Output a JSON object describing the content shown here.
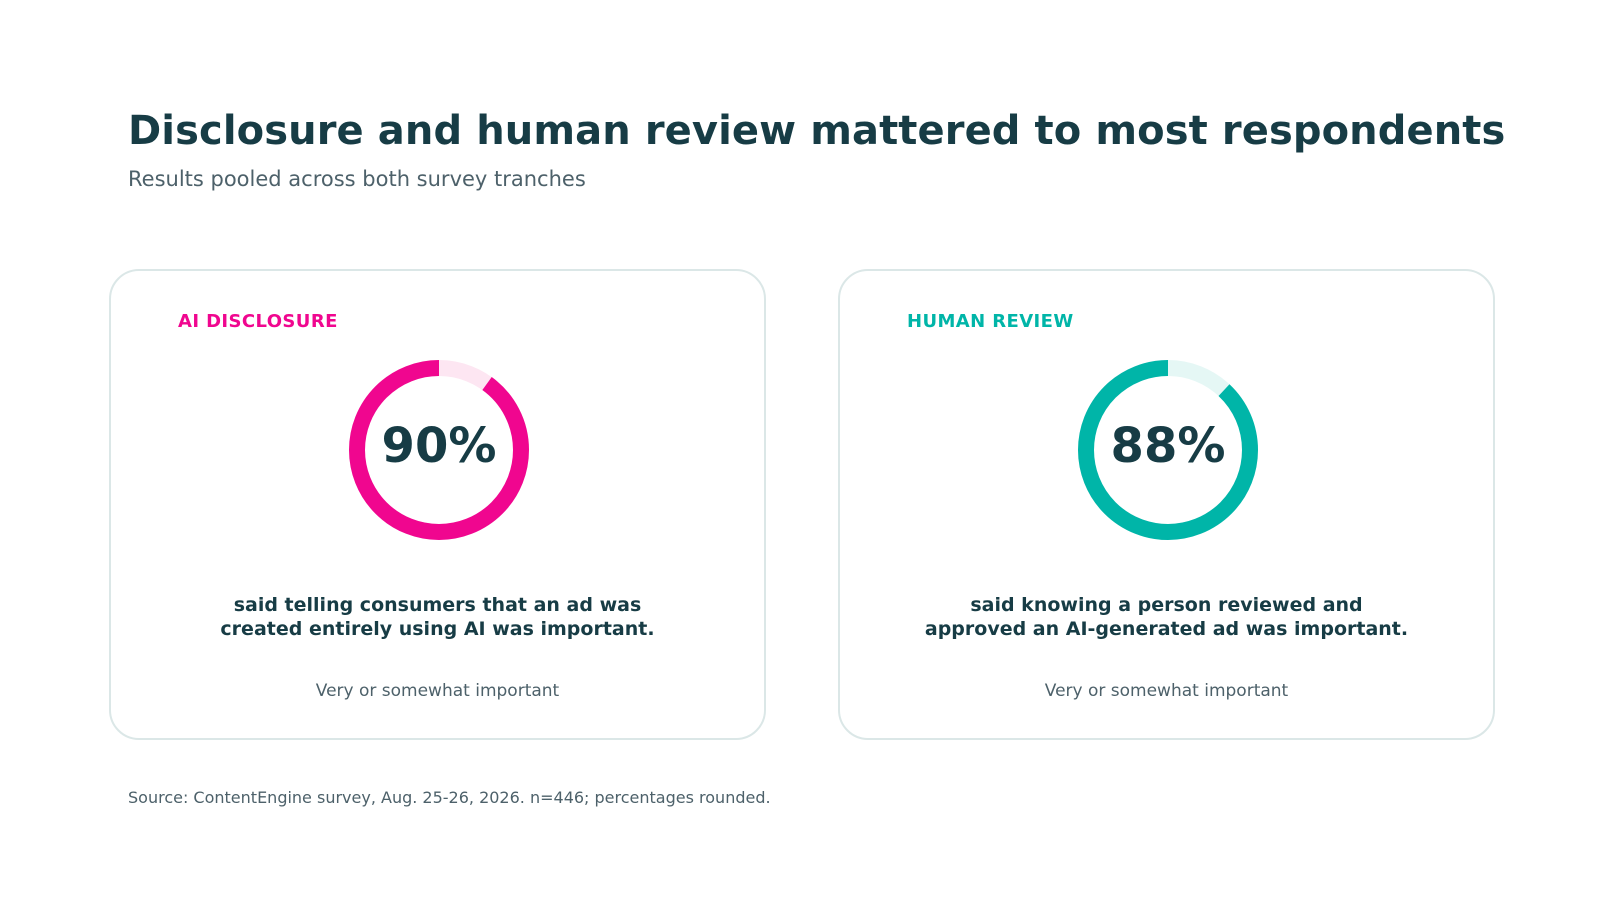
{
  "title": "Disclosure and human review mattered to most respondents",
  "subtitle": "Results pooled across both survey tranches",
  "colors": {
    "ai_accent": "#f0068f",
    "ai_track": "#fde6f2",
    "human_accent": "#00b5a8",
    "human_track": "#e5f7f5",
    "text_dark": "#173c45",
    "text_muted": "#4d616a"
  },
  "cards": [
    {
      "label": "AI DISCLOSURE",
      "value_text": "90%",
      "statement_lines": [
        "said telling consumers that an ad was",
        "created entirely using AI was important."
      ],
      "note": "Very or somewhat important"
    },
    {
      "label": "HUMAN REVIEW",
      "value_text": "88%",
      "statement_lines": [
        "said knowing a person reviewed and",
        "approved an AI-generated ad was important."
      ],
      "note": "Very or somewhat important"
    }
  ],
  "chart_data": [
    {
      "type": "pie",
      "title": "AI DISCLOSURE",
      "categories": [
        "Very or somewhat important"
      ],
      "values": [
        90
      ],
      "unit": "%",
      "ylim": [
        0,
        100
      ]
    },
    {
      "type": "pie",
      "title": "HUMAN REVIEW",
      "categories": [
        "Very or somewhat important"
      ],
      "values": [
        88
      ],
      "unit": "%",
      "ylim": [
        0,
        100
      ]
    }
  ],
  "source": "Source: ContentEngine survey, Aug. 25-26, 2026. n=446; percentages rounded."
}
